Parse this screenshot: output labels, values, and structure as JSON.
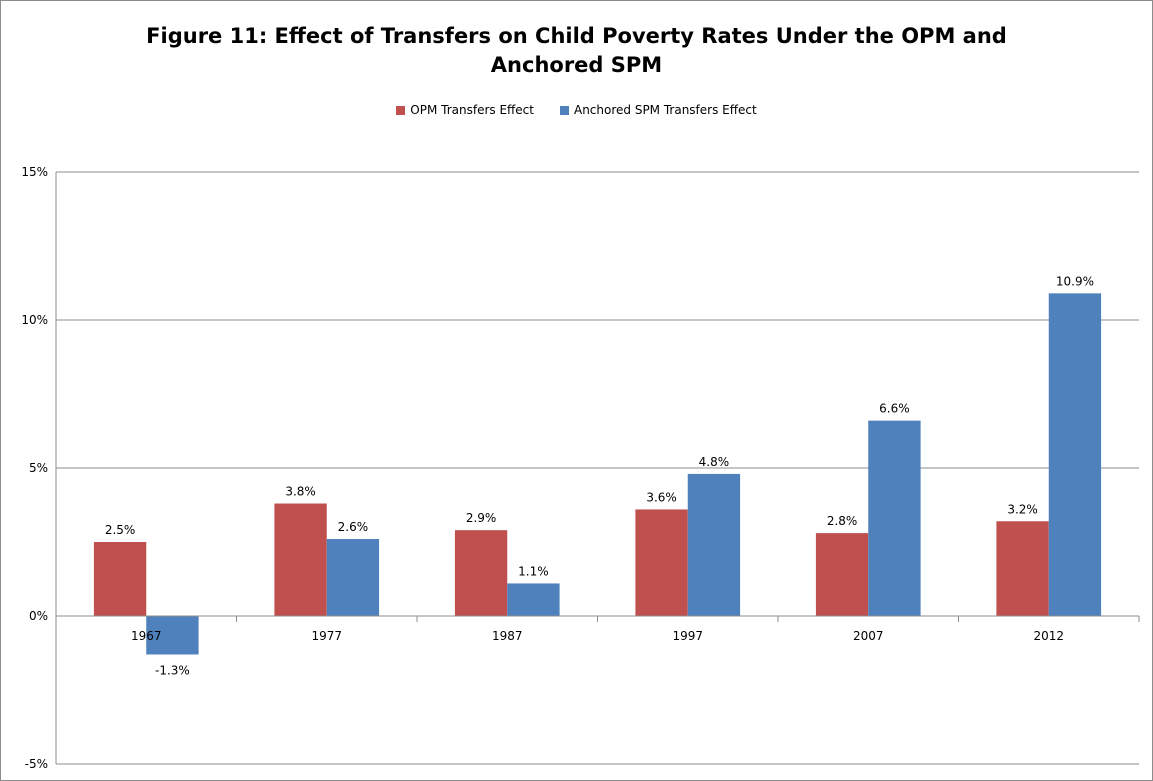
{
  "chart_data": {
    "type": "bar",
    "title_lines": [
      "Figure 11: Effect of Transfers on Child Poverty Rates Under the OPM and",
      "Anchored SPM"
    ],
    "categories": [
      "1967",
      "1977",
      "1987",
      "1997",
      "2007",
      "2012"
    ],
    "series": [
      {
        "name": "OPM Transfers Effect",
        "color": "#c0504d",
        "values": [
          2.5,
          3.8,
          2.9,
          3.6,
          2.8,
          3.2
        ],
        "labels": [
          "2.5%",
          "3.8%",
          "2.9%",
          "3.6%",
          "2.8%",
          "3.2%"
        ]
      },
      {
        "name": "Anchored SPM Transfers Effect",
        "color": "#4f81bd",
        "values": [
          -1.3,
          2.6,
          1.1,
          4.8,
          6.6,
          10.9
        ],
        "labels": [
          "-1.3%",
          "2.6%",
          "1.1%",
          "4.8%",
          "6.6%",
          "10.9%"
        ]
      }
    ],
    "y_ticks": [
      15,
      10,
      5,
      0,
      -5
    ],
    "y_tick_labels": [
      "15%",
      "10%",
      "5%",
      "0%",
      "-5%"
    ],
    "ylim": [
      -5,
      15
    ],
    "grid": true,
    "legend_position": "top-center"
  }
}
